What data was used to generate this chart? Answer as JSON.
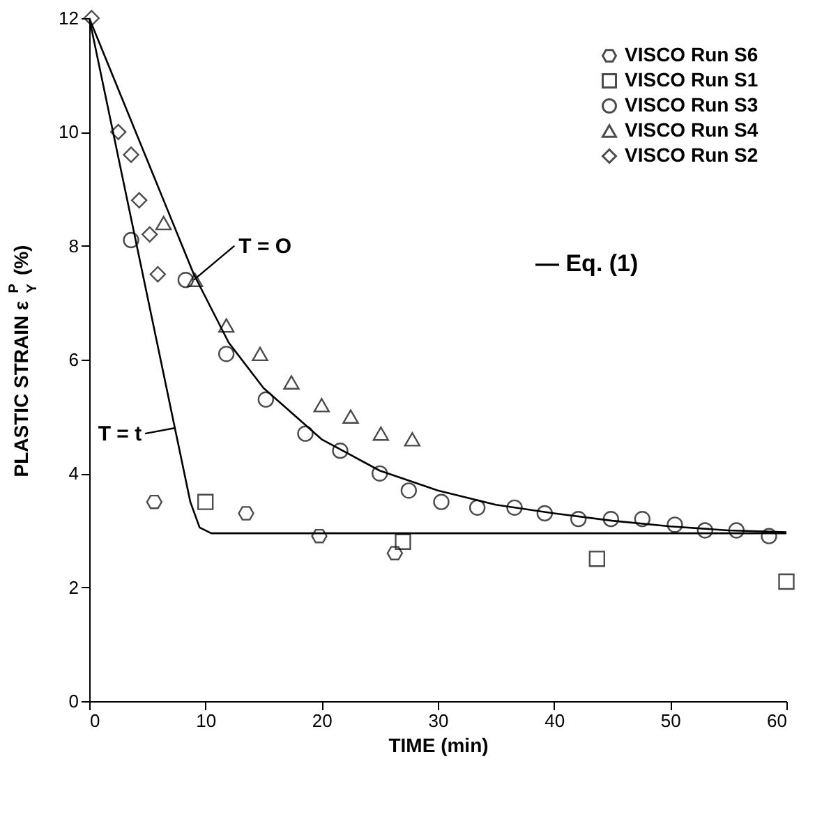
{
  "chart_data": {
    "type": "scatter",
    "xlabel": "TIME (min)",
    "ylabel": "PLASTIC STRAIN ε$^{P}$$_{Y}$ (%)",
    "xlim": [
      0,
      60
    ],
    "ylim": [
      0,
      12
    ],
    "xticks": [
      0,
      10,
      20,
      30,
      40,
      50,
      60
    ],
    "yticks": [
      0,
      2,
      4,
      6,
      8,
      10,
      12
    ],
    "grid": false,
    "legend": "top right",
    "series": [
      {
        "name": "VISCO Run S6",
        "color": "#000000",
        "x": [
          5.6,
          13.5,
          19.8,
          26.3
        ],
        "values": [
          3.5,
          3.3,
          2.9,
          2.6
        ]
      },
      {
        "name": "VISCO Run S1",
        "color": "#000000",
        "marker": "square",
        "x": [
          10,
          27,
          43.7,
          60
        ],
        "values": [
          3.5,
          2.8,
          2.5,
          2.1
        ]
      },
      {
        "name": "VISCO Run S3",
        "color": "#000000",
        "marker": "circle",
        "x": [
          3.6,
          8.3,
          11.8,
          15.2,
          18.6,
          21.6,
          25,
          27.5,
          30.3,
          33.4,
          36.6,
          39.2,
          42.1,
          44.9,
          47.6,
          50.4,
          53,
          55.7,
          58.5
        ],
        "values": [
          8.1,
          7.4,
          6.1,
          5.3,
          4.7,
          4.4,
          4.0,
          3.7,
          3.5,
          3.4,
          3.4,
          3.3,
          3.2,
          3.2,
          3.2,
          3.1,
          3.0,
          3.0,
          2.9
        ]
      },
      {
        "name": "VISCO Run S4",
        "color": "#000000",
        "marker": "triangle",
        "x": [
          6.4,
          9.1,
          11.8,
          14.7,
          17.4,
          20,
          22.5,
          25.1,
          27.8
        ],
        "values": [
          8.4,
          7.4,
          6.6,
          6.1,
          5.6,
          5.2,
          5.0,
          4.7,
          4.6
        ]
      },
      {
        "name": "VISCO Run S2",
        "color": "#000000",
        "marker": "diamond",
        "x": [
          0.2,
          2.5,
          3.6,
          4.3,
          5.2,
          5.9
        ],
        "values": [
          12.0,
          10.0,
          9.6,
          8.8,
          8.2,
          7.5
        ]
      },
      {
        "type": "line",
        "color": "#000000",
        "marker": "none",
        "line_style": "solid",
        "x": [
          0,
          9,
          12,
          15,
          20,
          25,
          30,
          35,
          40,
          45,
          50,
          55,
          60
        ],
        "values": [
          12,
          7.5,
          6.3,
          5.5,
          4.6,
          4.05,
          3.7,
          3.45,
          3.3,
          3.17,
          3.07,
          3.0,
          2.97
        ]
      },
      {
        "type": "line",
        "color": "#000000",
        "marker": "none",
        "line_style": "solid",
        "x": [
          0,
          8.7,
          9.5,
          10.5,
          60
        ],
        "values": [
          12,
          3.5,
          3.05,
          2.95,
          2.95
        ]
      }
    ],
    "annotations": [
      {
        "text": "T = O",
        "x": 9,
        "y": 7.4
      },
      {
        "text": "T = t",
        "x": 7.4,
        "y": 4.8
      },
      "— Eq. (1)"
    ]
  }
}
